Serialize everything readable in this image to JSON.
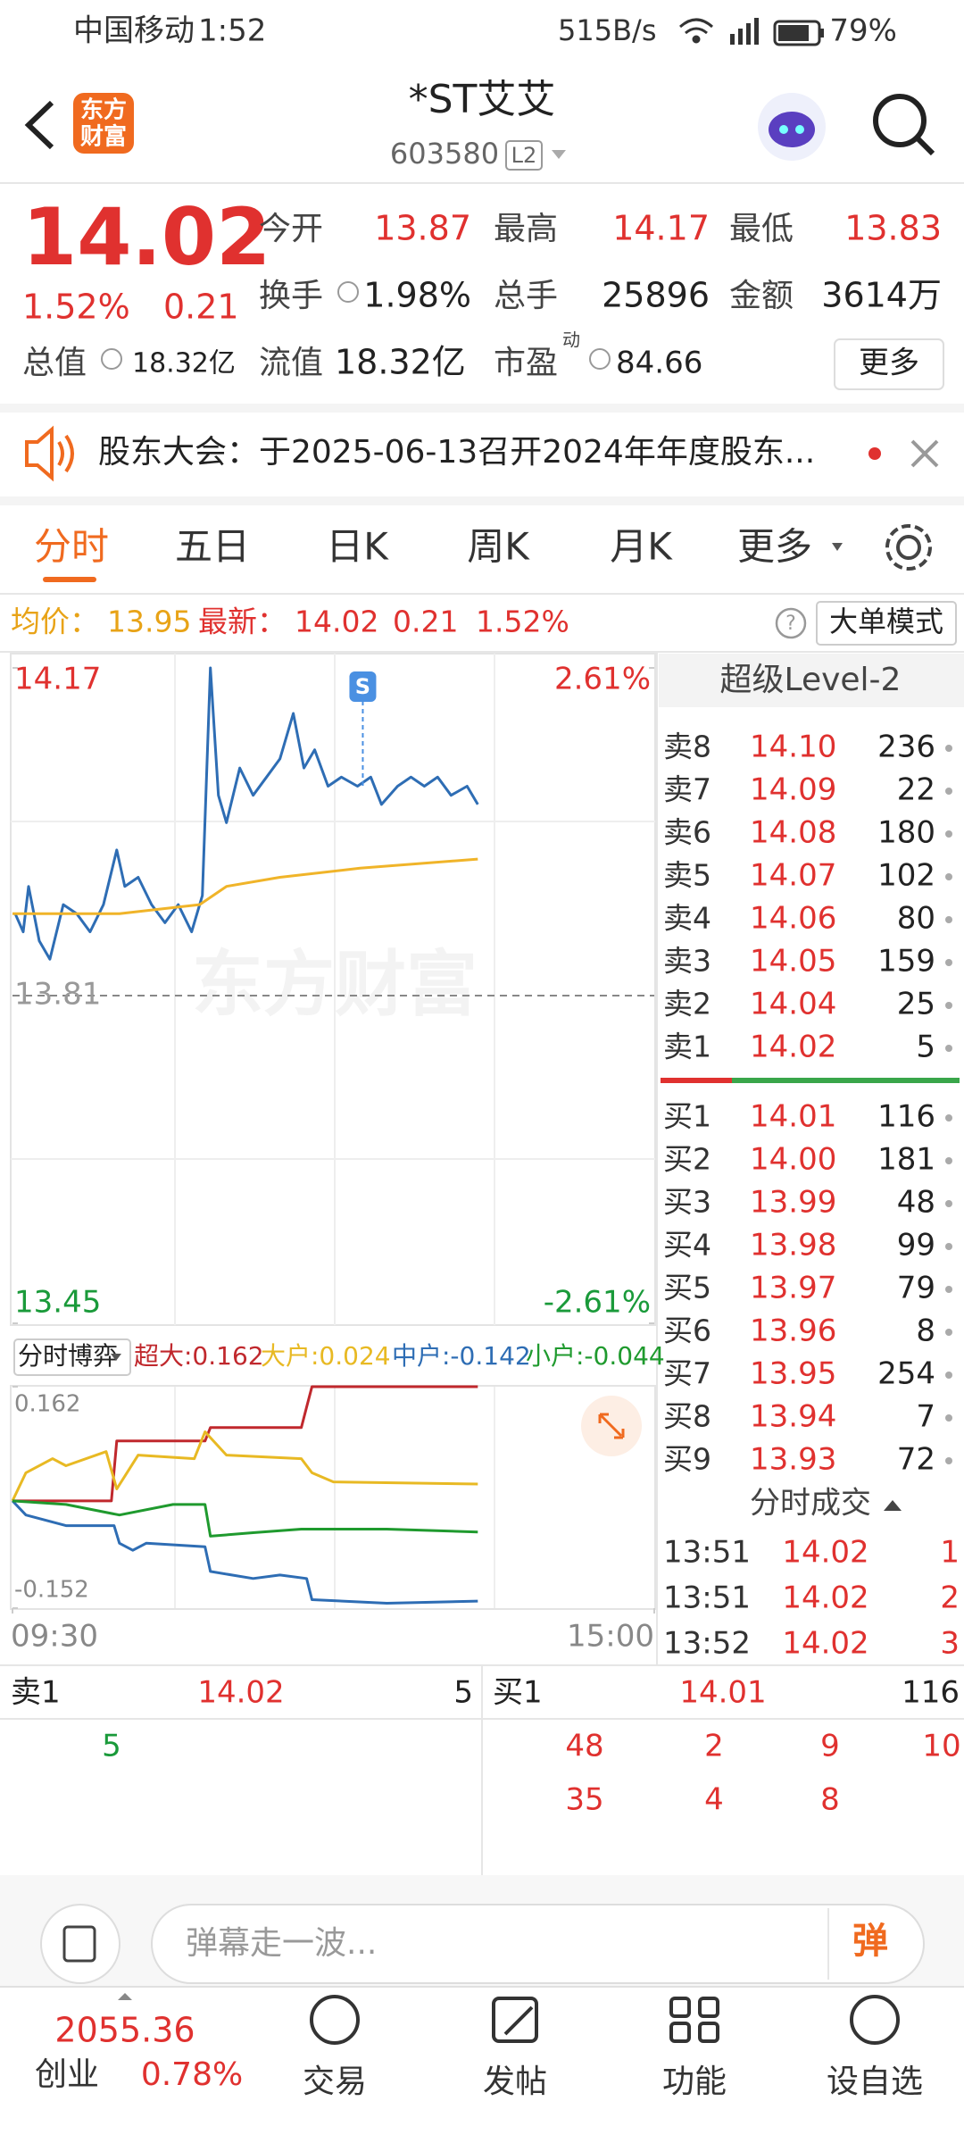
{
  "status_bar": {
    "carrier": "中国移动",
    "time": "1:52",
    "speed": "515B/s",
    "battery": "79%"
  },
  "header": {
    "logo_line1": "东方",
    "logo_line2": "财富",
    "title": "*ST艾艾",
    "code": "603580",
    "badge": "L2"
  },
  "quote": {
    "price": "14.02",
    "change_pct": "1.52%",
    "change": "0.21",
    "fields": [
      {
        "label": "今开",
        "value": "13.87"
      },
      {
        "label": "最高",
        "value": "14.17"
      },
      {
        "label": "最低",
        "value": "13.83"
      },
      {
        "label": "换手",
        "value": "1.98%"
      },
      {
        "label": "总手",
        "value": "25896"
      },
      {
        "label": "金额",
        "value": "3614万"
      },
      {
        "label": "总值",
        "value": "18.32亿"
      },
      {
        "label": "流值",
        "value": "18.32亿"
      },
      {
        "label": "市盈",
        "sup": "动",
        "value": "84.66"
      }
    ],
    "more": "更多"
  },
  "notice": "股东大会：于2025-06-13召开2024年年度股东...",
  "tabs": [
    "分时",
    "五日",
    "日K",
    "周K",
    "月K",
    "更多"
  ],
  "info_bar": {
    "avg_label": "均价：",
    "avg": "13.95",
    "last_label": "最新：",
    "last": "14.02",
    "change": "0.21",
    "change_pct": "1.52%",
    "mode": "大单模式"
  },
  "chart_data": [
    {
      "type": "line",
      "watermark": "东方财富",
      "xlim": [
        0,
        240
      ],
      "ylim": [
        13.45,
        14.17
      ],
      "yticks": [
        14.17,
        13.81,
        13.45
      ],
      "ytick_colors": [
        "#e0312f",
        "#999999",
        "#1a9a3a"
      ],
      "grid_dash": [
        false,
        true,
        false
      ],
      "y2lim": [
        -2.61,
        2.61
      ],
      "y2ticks": [
        {
          "value": 2.61,
          "label": "2.61%"
        },
        {
          "value": -2.61,
          "label": "-2.61%"
        }
      ],
      "y2tick_colors": [
        "#e0312f",
        "#1a9a3a"
      ],
      "annotation": {
        "text": "S",
        "x": 131
      },
      "series": [
        {
          "color": "#2e6db4",
          "x": [
            1,
            4,
            6,
            10,
            14,
            19,
            24,
            29,
            34,
            39,
            42,
            47,
            52,
            57,
            62,
            67,
            71,
            74,
            77,
            80,
            85,
            90,
            95,
            100,
            105,
            109,
            113,
            118,
            123,
            129,
            134,
            138,
            144,
            149,
            154,
            159,
            164,
            170,
            174
          ],
          "values": [
            13.9,
            13.88,
            13.93,
            13.87,
            13.85,
            13.91,
            13.9,
            13.88,
            13.91,
            13.97,
            13.93,
            13.94,
            13.91,
            13.89,
            13.91,
            13.88,
            13.92,
            14.17,
            14.03,
            14.0,
            14.06,
            14.03,
            14.05,
            14.07,
            14.12,
            14.06,
            14.08,
            14.04,
            14.05,
            14.04,
            14.05,
            14.02,
            14.04,
            14.05,
            14.04,
            14.05,
            14.03,
            14.04,
            14.02
          ]
        },
        {
          "color": "#f0b429",
          "x": [
            0,
            40,
            70,
            80,
            100,
            130,
            174
          ],
          "values": [
            13.9,
            13.9,
            13.91,
            13.93,
            13.94,
            13.95,
            13.96
          ]
        }
      ]
    },
    {
      "type": "line",
      "title": "分时博弈",
      "xlim": [
        0,
        240
      ],
      "ylim": [
        -0.152,
        0.162
      ],
      "yticks": [
        0.162,
        -0.152
      ],
      "xticks": [
        {
          "value": 0,
          "label": "09:30"
        },
        {
          "value": 240,
          "label": "15:00"
        }
      ],
      "series": [
        {
          "legend": "超大:0.162",
          "color": "#c0282d",
          "x": [
            0,
            37,
            39,
            72,
            74,
            108,
            110,
            112,
            174
          ],
          "values": [
            0,
            0,
            0.085,
            0.085,
            0.104,
            0.104,
            0.133,
            0.162,
            0.162
          ]
        },
        {
          "legend": "大户:0.024",
          "color": "#e8b923",
          "x": [
            0,
            5,
            15,
            20,
            35,
            39,
            47,
            68,
            72,
            80,
            108,
            112,
            120,
            174
          ],
          "values": [
            0,
            0.04,
            0.06,
            0.05,
            0.07,
            0.017,
            0.065,
            0.06,
            0.098,
            0.065,
            0.06,
            0.04,
            0.027,
            0.024
          ]
        },
        {
          "legend": "中户:-0.142",
          "color": "#2e6db4",
          "x": [
            0,
            5,
            20,
            38,
            40,
            45,
            50,
            72,
            74,
            90,
            100,
            110,
            112,
            140,
            174
          ],
          "values": [
            0,
            -0.02,
            -0.035,
            -0.035,
            -0.06,
            -0.07,
            -0.06,
            -0.065,
            -0.1,
            -0.11,
            -0.105,
            -0.11,
            -0.14,
            -0.145,
            -0.142
          ]
        },
        {
          "legend": "小户:-0.044",
          "color": "#1f9a2e",
          "x": [
            0,
            20,
            40,
            60,
            72,
            74,
            90,
            108,
            140,
            174
          ],
          "values": [
            0,
            -0.005,
            -0.02,
            -0.005,
            -0.005,
            -0.05,
            -0.045,
            -0.04,
            -0.04,
            -0.044
          ]
        }
      ]
    }
  ],
  "order_book": {
    "title": "超级Level-2",
    "asks": [
      [
        "卖8",
        "14.10",
        "236"
      ],
      [
        "卖7",
        "14.09",
        "22"
      ],
      [
        "卖6",
        "14.08",
        "180"
      ],
      [
        "卖5",
        "14.07",
        "102"
      ],
      [
        "卖4",
        "14.06",
        "80"
      ],
      [
        "卖3",
        "14.05",
        "159"
      ],
      [
        "卖2",
        "14.04",
        "25"
      ],
      [
        "卖1",
        "14.02",
        "5"
      ]
    ],
    "bids": [
      [
        "买1",
        "14.01",
        "116"
      ],
      [
        "买2",
        "14.00",
        "181"
      ],
      [
        "买3",
        "13.99",
        "48"
      ],
      [
        "买4",
        "13.98",
        "99"
      ],
      [
        "买5",
        "13.97",
        "79"
      ],
      [
        "买6",
        "13.96",
        "8"
      ],
      [
        "买7",
        "13.95",
        "254"
      ],
      [
        "买8",
        "13.94",
        "7"
      ],
      [
        "买9",
        "13.93",
        "72"
      ]
    ]
  },
  "trades": {
    "title": "分时成交",
    "rows": [
      [
        "13:51",
        "14.02",
        "1"
      ],
      [
        "13:51",
        "14.02",
        "2"
      ],
      [
        "13:52",
        "14.02",
        "3"
      ]
    ]
  },
  "queue": {
    "ask": {
      "label": "卖1",
      "price": "14.02",
      "qty": "5",
      "orders": [
        "5"
      ]
    },
    "bid": {
      "label": "买1",
      "price": "14.01",
      "qty": "116",
      "orders": [
        "48",
        "2",
        "9",
        "10",
        "35",
        "4",
        "8"
      ]
    }
  },
  "comment": {
    "placeholder": "弹幕走一波...",
    "button": "弹"
  },
  "nav": {
    "index_value": "2055.36",
    "index_name": "创业",
    "index_change": "0.78%",
    "items": [
      "交易",
      "发帖",
      "功能",
      "设自选"
    ]
  }
}
